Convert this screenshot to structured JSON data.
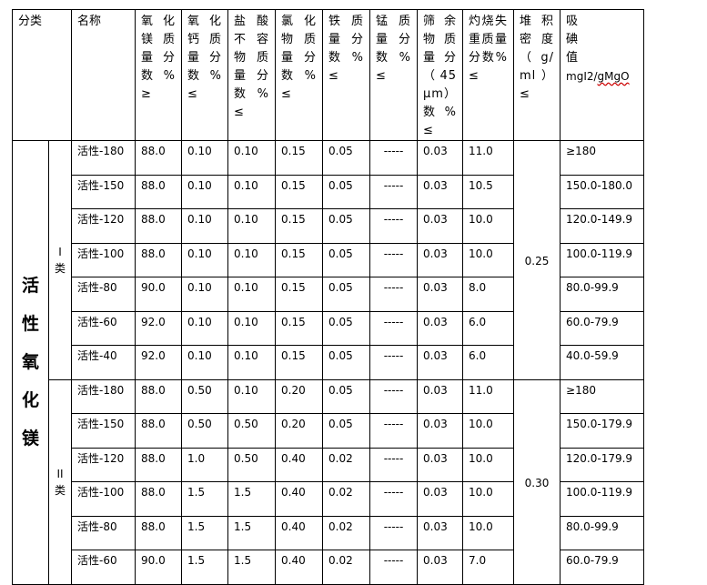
{
  "headers": {
    "category": "分类",
    "name": "名称",
    "mgo": "氧化镁质量分数%≥",
    "cao": "氧化钙质量分数%≤",
    "hcl": "盐酸不容物质量分数%≤",
    "cl": "氯化物质量分数%≤",
    "fe": "铁质量分数%≤",
    "mn": "锰质量分数%≤",
    "sieve": "筛余物质量分（45μm）数%≤",
    "loss": "灼烧失重质量分数%≤",
    "density": "堆积密度（g/ml）≤",
    "iodine": "吸碘值",
    "iodine_unit_a": "mgI2/",
    "iodine_unit_b": "gMgO"
  },
  "main_category": "活性氧化镁",
  "groups": [
    {
      "label": "I类",
      "density": "0.25",
      "rows": [
        [
          "活性-180",
          "88.0",
          "0.10",
          "0.10",
          "0.15",
          "0.05",
          "-----",
          "0.03",
          "11.0",
          "≥180"
        ],
        [
          "活性-150",
          "88.0",
          "0.10",
          "0.10",
          "0.15",
          "0.05",
          "-----",
          "0.03",
          "10.5",
          "150.0-180.0"
        ],
        [
          "活性-120",
          "88.0",
          "0.10",
          "0.10",
          "0.15",
          "0.05",
          "-----",
          "0.03",
          "10.0",
          "120.0-149.9"
        ],
        [
          "活性-100",
          "88.0",
          "0.10",
          "0.10",
          "0.15",
          "0.05",
          "-----",
          "0.03",
          "10.0",
          "100.0-119.9"
        ],
        [
          "活性-80",
          "90.0",
          "0.10",
          "0.10",
          "0.15",
          "0.05",
          "-----",
          "0.03",
          "8.0",
          "80.0-99.9"
        ],
        [
          "活性-60",
          "92.0",
          "0.10",
          "0.10",
          "0.15",
          "0.05",
          "-----",
          "0.03",
          "6.0",
          "60.0-79.9"
        ],
        [
          "活性-40",
          "92.0",
          "0.10",
          "0.10",
          "0.15",
          "0.05",
          "-----",
          "0.03",
          "6.0",
          "40.0-59.9"
        ]
      ]
    },
    {
      "label": "II类",
      "density": "0.30",
      "rows": [
        [
          "活性-180",
          "88.0",
          "0.50",
          "0.10",
          "0.20",
          "0.05",
          "-----",
          "0.03",
          "11.0",
          "≥180"
        ],
        [
          "活性-150",
          "88.0",
          "0.50",
          "0.50",
          "0.20",
          "0.05",
          "-----",
          "0.03",
          "10.0",
          "150.0-179.9"
        ],
        [
          "活性-120",
          "88.0",
          "1.0",
          "0.50",
          "0.40",
          "0.02",
          "-----",
          "0.03",
          "10.0",
          "120.0-179.9"
        ],
        [
          "活性-100",
          "88.0",
          "1.5",
          "1.5",
          "0.40",
          "0.02",
          "-----",
          "0.03",
          "10.0",
          "100.0-119.9"
        ],
        [
          "活性-80",
          "88.0",
          "1.5",
          "1.5",
          "0.40",
          "0.02",
          "-----",
          "0.03",
          "10.0",
          "80.0-99.9"
        ],
        [
          "活性-60",
          "90.0",
          "1.5",
          "1.5",
          "0.40",
          "0.02",
          "-----",
          "0.03",
          "7.0",
          "60.0-79.9"
        ]
      ]
    }
  ]
}
